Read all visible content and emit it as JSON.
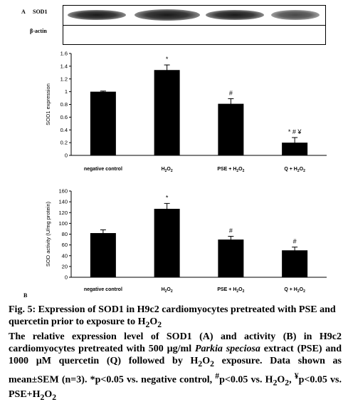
{
  "panel_a_label": "A",
  "panel_b_label": "B",
  "blot": {
    "sod1_label": "SOD1",
    "actin_label": "β-actin"
  },
  "chart_data": [
    {
      "type": "bar",
      "categories": [
        "negative control",
        "H2O2",
        "PSE + H2O2",
        "Q + H2O2"
      ],
      "values": [
        1.0,
        1.34,
        0.81,
        0.2
      ],
      "errors": [
        0.01,
        0.08,
        0.08,
        0.08
      ],
      "annotations": [
        "",
        "*",
        "#",
        "* # ¥"
      ],
      "ylabel": "SOD1 expression",
      "ylim": [
        0,
        1.6
      ],
      "yticks": [
        "0",
        "0.2",
        "0.4",
        "0.6",
        "0.8",
        "1",
        "1.2",
        "1.4",
        "1.6"
      ],
      "bar_color": "#000000",
      "grid": false
    },
    {
      "type": "bar",
      "categories": [
        "negative control",
        "H2O2",
        "PSE + H2O2",
        "Q + H2O2"
      ],
      "values": [
        82,
        127,
        70,
        50
      ],
      "errors": [
        6,
        10,
        6,
        6
      ],
      "annotations": [
        "",
        "*",
        "#",
        "#"
      ],
      "ylabel": "SOD activity (U/mg protein)",
      "ylim": [
        0,
        160
      ],
      "yticks": [
        "0",
        "20",
        "40",
        "60",
        "80",
        "100",
        "120",
        "140",
        "160"
      ],
      "bar_color": "#000000",
      "grid": false
    }
  ],
  "caption": {
    "title_prefix": "Fig. 5: Expression of SOD1 in H9c2 cardiomyocytes pretreated with PSE and quercetin prior to exposure to H",
    "title_sub": "2",
    "title_o": "O",
    "title_sub2": "2",
    "body_1": "The relative expression level of SOD1 (A) and activity (B) in H9c2 cardiomyocytes pretreated with 500 µg/ml ",
    "body_italic": "Parkia speciosa",
    "body_2": " extract (PSE) and 1000 µM quercetin (Q) followed by H",
    "body_3": "O",
    "body_4": " exposure. Data shown as mean±SEM (n=3). *p<0.05 vs. negative control, ",
    "body_hash": "#",
    "body_5": "p<0.05 vs. H",
    "body_6": "O",
    "body_7": ", ",
    "body_yen": "¥",
    "body_8": "p<0.05 vs. PSE+H",
    "body_9": "O",
    "sub_2": "2"
  }
}
